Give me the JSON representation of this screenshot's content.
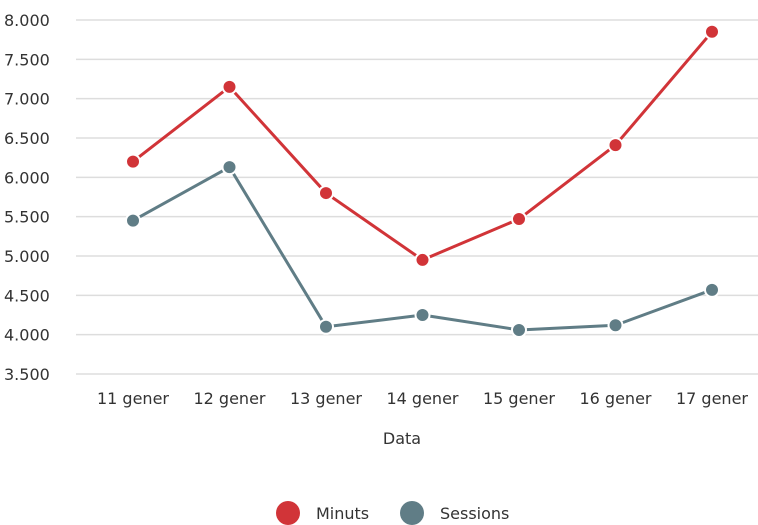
{
  "chart_data": {
    "type": "line",
    "xlabel": "Data",
    "ylabel": "",
    "ylim": [
      3500,
      8000
    ],
    "yticks": [
      3500,
      4000,
      4500,
      5000,
      5500,
      6000,
      6500,
      7000,
      7500,
      8000
    ],
    "ytick_labels": [
      "3.500",
      "4.000",
      "4.500",
      "5.000",
      "5.500",
      "6.000",
      "6.500",
      "7.000",
      "7.500",
      "8.000"
    ],
    "categories": [
      "11 gener",
      "12 gener",
      "13 gener",
      "14 gener",
      "15 gener",
      "16 gener",
      "17 gener"
    ],
    "series": [
      {
        "name": "Minuts",
        "color": "#d13438",
        "values": [
          6200,
          7150,
          5800,
          4950,
          5470,
          6410,
          7850
        ]
      },
      {
        "name": "Sessions",
        "color": "#607d86",
        "values": [
          5450,
          6130,
          4100,
          4250,
          4060,
          4120,
          4570
        ]
      }
    ],
    "grid": true,
    "legend": "bottom-center"
  }
}
